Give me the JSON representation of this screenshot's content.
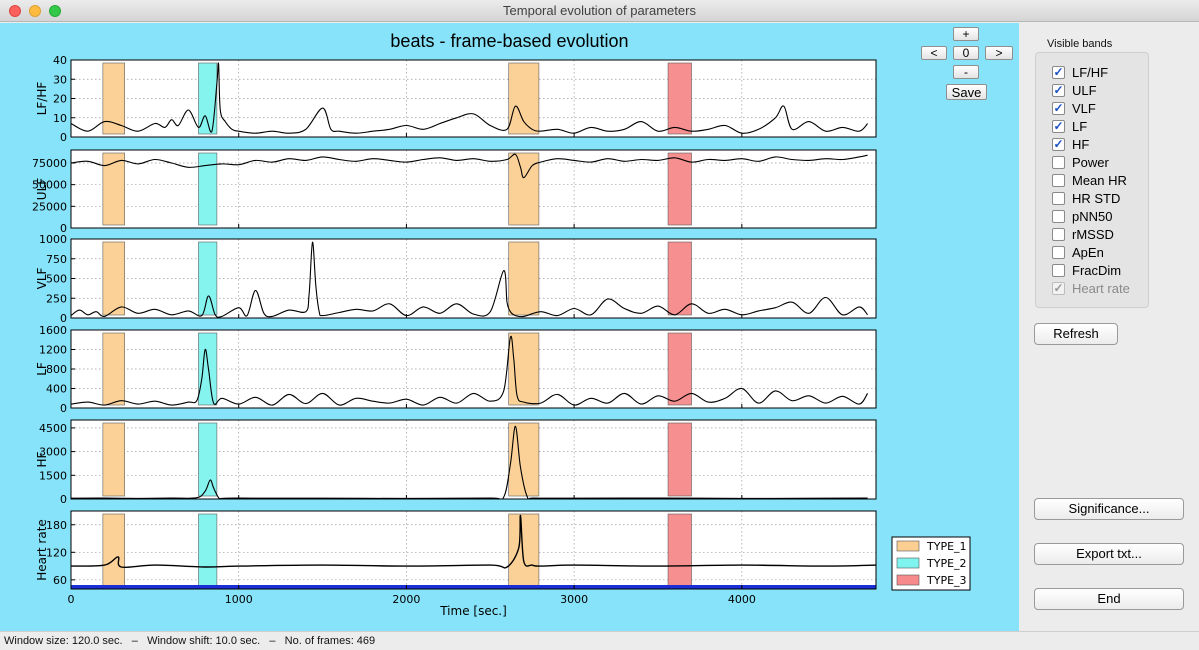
{
  "window": {
    "title": "Temporal evolution of parameters"
  },
  "plot": {
    "title": "beats - frame-based evolution",
    "xlabel": "Time [sec.]",
    "xlim": [
      0,
      4800
    ],
    "xticks": [
      "0",
      "1000",
      "2000",
      "3000",
      "4000"
    ],
    "xtick_values": [
      0,
      1000,
      2000,
      3000,
      4000
    ]
  },
  "nav": {
    "plus": "+",
    "prev": "<",
    "index": "0",
    "next": ">",
    "minus": "-",
    "save": "Save"
  },
  "bands": {
    "label": "Visible bands",
    "items": [
      {
        "label": "LF/HF",
        "checked": true,
        "enabled": true
      },
      {
        "label": "ULF",
        "checked": true,
        "enabled": true
      },
      {
        "label": "VLF",
        "checked": true,
        "enabled": true
      },
      {
        "label": "LF",
        "checked": true,
        "enabled": true
      },
      {
        "label": "HF",
        "checked": true,
        "enabled": true
      },
      {
        "label": "Power",
        "checked": false,
        "enabled": true
      },
      {
        "label": "Mean HR",
        "checked": false,
        "enabled": true
      },
      {
        "label": "HR STD",
        "checked": false,
        "enabled": true
      },
      {
        "label": "pNN50",
        "checked": false,
        "enabled": true
      },
      {
        "label": "rMSSD",
        "checked": false,
        "enabled": true
      },
      {
        "label": "ApEn",
        "checked": false,
        "enabled": true
      },
      {
        "label": "FracDim",
        "checked": false,
        "enabled": true
      },
      {
        "label": "Heart rate",
        "checked": true,
        "enabled": false
      }
    ]
  },
  "buttons": {
    "refresh": "Refresh",
    "significance": "Significance...",
    "export": "Export txt...",
    "end": "End"
  },
  "status": {
    "window_size": "Window size: 120.0 sec.",
    "sep1": "–",
    "window_shift": "Window shift: 10.0 sec.",
    "sep2": "–",
    "frames": "No. of frames: 469"
  },
  "colors": {
    "background": "#87e3f9",
    "type1": "#fbcf92",
    "type2": "#7ff3ee",
    "type3": "#f68a8a",
    "baseline": "#1c2fd6"
  },
  "chart_data": [
    {
      "type": "line",
      "ylabel": "LF/HF",
      "ylim": [
        0,
        40
      ],
      "yticks": [
        0,
        10,
        20,
        30,
        40
      ],
      "grid": true,
      "x": [
        0,
        100,
        200,
        300,
        400,
        500,
        560,
        600,
        640,
        700,
        760,
        800,
        840,
        870,
        880,
        890,
        920,
        960,
        1000,
        1100,
        1200,
        1300,
        1400,
        1500,
        1550,
        1600,
        1700,
        1800,
        1900,
        2000,
        2100,
        2200,
        2300,
        2400,
        2500,
        2600,
        2650,
        2700,
        2750,
        2800,
        2900,
        3000,
        3100,
        3200,
        3300,
        3400,
        3500,
        3600,
        3700,
        3800,
        3900,
        4000,
        4100,
        4200,
        4250,
        4300,
        4400,
        4500,
        4600,
        4700,
        4750
      ],
      "y": [
        7,
        3,
        8,
        6,
        3,
        7,
        5,
        9,
        6,
        14,
        5,
        11,
        3,
        28,
        38,
        14,
        8,
        4,
        3,
        2,
        3,
        2,
        4,
        15,
        4,
        3,
        2,
        3,
        4,
        6,
        4,
        7,
        10,
        12,
        6,
        4,
        16,
        8,
        4,
        3,
        4,
        2,
        5,
        3,
        4,
        8,
        3,
        5,
        3,
        4,
        6,
        2,
        4,
        10,
        16,
        4,
        8,
        3,
        5,
        3,
        7
      ]
    },
    {
      "type": "line",
      "ylabel": "ULF",
      "ylim": [
        0,
        90000
      ],
      "yticks": [
        0,
        25000,
        50000,
        75000
      ],
      "grid": true,
      "x": [
        0,
        100,
        200,
        300,
        400,
        500,
        600,
        700,
        800,
        900,
        1000,
        1100,
        1200,
        1300,
        1400,
        1500,
        1600,
        1700,
        1800,
        1900,
        2000,
        2100,
        2200,
        2300,
        2400,
        2500,
        2600,
        2650,
        2680,
        2700,
        2750,
        2800,
        2900,
        3000,
        3100,
        3200,
        3300,
        3400,
        3500,
        3600,
        3700,
        3800,
        3900,
        4000,
        4100,
        4200,
        4300,
        4400,
        4500,
        4600,
        4700,
        4750
      ],
      "y": [
        75000,
        77000,
        72000,
        78000,
        74000,
        79000,
        75000,
        70000,
        72000,
        74000,
        73000,
        78000,
        76000,
        80000,
        78000,
        82000,
        79000,
        77000,
        80000,
        78000,
        76000,
        79000,
        81000,
        78000,
        80000,
        77000,
        79000,
        85000,
        70000,
        58000,
        72000,
        76000,
        80000,
        78000,
        76000,
        80000,
        77000,
        79000,
        78000,
        81000,
        76000,
        79000,
        78000,
        80000,
        77000,
        82000,
        79000,
        78000,
        80000,
        79000,
        82000,
        84000
      ]
    },
    {
      "type": "line",
      "ylabel": "VLF",
      "ylim": [
        0,
        1000
      ],
      "yticks": [
        0,
        250,
        500,
        750,
        1000
      ],
      "grid": true,
      "x": [
        0,
        50,
        100,
        150,
        200,
        300,
        400,
        500,
        600,
        700,
        780,
        820,
        860,
        900,
        1000,
        1050,
        1100,
        1150,
        1200,
        1300,
        1400,
        1420,
        1440,
        1460,
        1480,
        1500,
        1600,
        1700,
        1800,
        1900,
        2000,
        2100,
        2200,
        2300,
        2400,
        2500,
        2580,
        2600,
        2620,
        2650,
        2700,
        2800,
        2900,
        3000,
        3100,
        3200,
        3300,
        3400,
        3500,
        3600,
        3700,
        3800,
        3900,
        4000,
        4100,
        4200,
        4300,
        4400,
        4500,
        4600,
        4700,
        4750
      ],
      "y": [
        30,
        100,
        40,
        80,
        20,
        140,
        60,
        110,
        40,
        90,
        30,
        280,
        40,
        20,
        130,
        30,
        350,
        60,
        20,
        100,
        80,
        300,
        960,
        400,
        80,
        30,
        70,
        110,
        90,
        180,
        30,
        140,
        60,
        180,
        50,
        80,
        600,
        200,
        80,
        30,
        20,
        80,
        30,
        120,
        40,
        240,
        120,
        60,
        150,
        40,
        180,
        60,
        110,
        40,
        90,
        130,
        200,
        60,
        260,
        40,
        140,
        40
      ]
    },
    {
      "type": "line",
      "ylabel": "LF",
      "ylim": [
        0,
        1600
      ],
      "yticks": [
        0,
        400,
        800,
        1200,
        1600
      ],
      "grid": true,
      "x": [
        0,
        100,
        200,
        300,
        400,
        500,
        600,
        700,
        750,
        780,
        800,
        820,
        850,
        900,
        1000,
        1100,
        1200,
        1300,
        1400,
        1500,
        1600,
        1700,
        1800,
        1900,
        2000,
        2100,
        2200,
        2300,
        2400,
        2500,
        2580,
        2620,
        2640,
        2660,
        2700,
        2800,
        2900,
        3000,
        3100,
        3200,
        3300,
        3400,
        3500,
        3600,
        3700,
        3800,
        3900,
        4000,
        4100,
        4200,
        4300,
        4400,
        4500,
        4600,
        4700,
        4750
      ],
      "y": [
        80,
        120,
        60,
        150,
        80,
        140,
        60,
        120,
        150,
        600,
        1200,
        800,
        100,
        200,
        80,
        220,
        60,
        280,
        90,
        300,
        60,
        200,
        140,
        100,
        180,
        60,
        220,
        100,
        300,
        140,
        350,
        1450,
        1000,
        250,
        120,
        100,
        280,
        60,
        200,
        100,
        300,
        80,
        250,
        140,
        300,
        120,
        200,
        400,
        100,
        350,
        150,
        250,
        100,
        240,
        80,
        300
      ]
    },
    {
      "type": "line",
      "ylabel": "HF",
      "ylim": [
        0,
        5000
      ],
      "yticks": [
        0,
        1500,
        3000,
        4500
      ],
      "grid": true,
      "x": [
        0,
        200,
        400,
        600,
        750,
        800,
        830,
        850,
        880,
        900,
        1000,
        1500,
        2000,
        2500,
        2580,
        2620,
        2650,
        2680,
        2720,
        2760,
        3000,
        3500,
        4000,
        4500,
        4750
      ],
      "y": [
        50,
        60,
        40,
        60,
        80,
        500,
        1200,
        700,
        80,
        40,
        60,
        50,
        40,
        60,
        120,
        2200,
        4600,
        2000,
        150,
        60,
        50,
        60,
        40,
        50,
        60
      ]
    },
    {
      "type": "line",
      "ylabel": "Heart rate",
      "ylim": [
        40,
        210
      ],
      "yticks": [
        60,
        120,
        180
      ],
      "grid": true,
      "x": [
        0,
        200,
        280,
        300,
        500,
        800,
        1000,
        1500,
        2000,
        2500,
        2600,
        2670,
        2680,
        2700,
        2750,
        2800,
        3000,
        3500,
        4000,
        4500,
        4800
      ],
      "y": [
        90,
        92,
        110,
        88,
        92,
        88,
        90,
        92,
        90,
        92,
        88,
        130,
        200,
        100,
        92,
        90,
        92,
        90,
        92,
        90,
        92
      ]
    }
  ],
  "highlight_regions": [
    {
      "name": "TYPE_1",
      "color": "#fbcf92",
      "ranges": [
        [
          190,
          320
        ],
        [
          2610,
          2790
        ]
      ]
    },
    {
      "name": "TYPE_2",
      "color": "#7ff3ee",
      "ranges": [
        [
          760,
          870
        ]
      ]
    },
    {
      "name": "TYPE_3",
      "color": "#f68a8a",
      "ranges": [
        [
          3560,
          3700
        ]
      ]
    }
  ],
  "legend": {
    "location": "right",
    "items": [
      "TYPE_1",
      "TYPE_2",
      "TYPE_3"
    ]
  }
}
